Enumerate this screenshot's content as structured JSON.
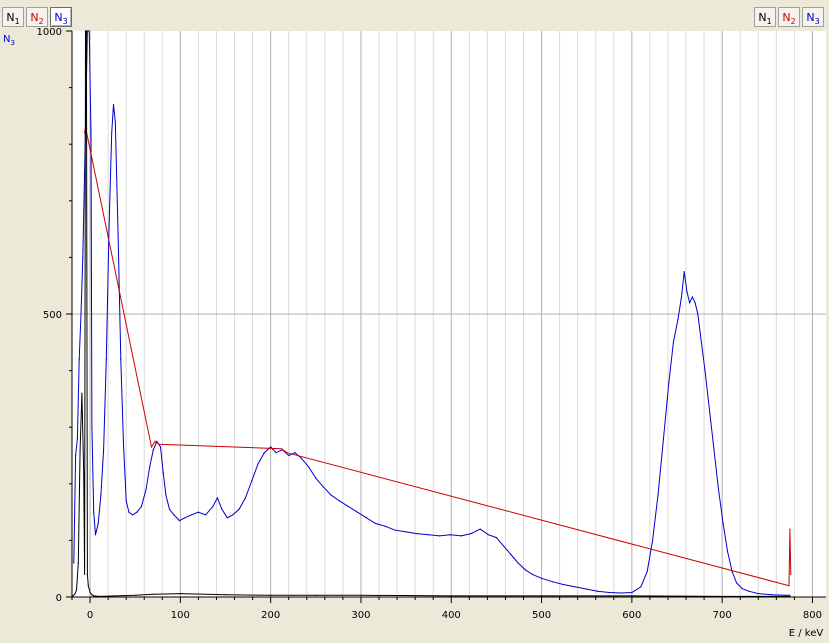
{
  "toolbar": {
    "left_tabs": [
      {
        "base": "N",
        "sub": "1",
        "color": "#000000"
      },
      {
        "base": "N",
        "sub": "2",
        "color": "#cc0000"
      },
      {
        "base": "N",
        "sub": "3",
        "color": "#0000cc"
      }
    ],
    "right_tabs": [
      {
        "base": "N",
        "sub": "1",
        "color": "#000000"
      },
      {
        "base": "N",
        "sub": "2",
        "color": "#cc0000"
      },
      {
        "base": "N",
        "sub": "3",
        "color": "#0000cc"
      }
    ],
    "active_left_index": 2
  },
  "corner_label": {
    "base": "N",
    "sub": "3",
    "color": "#0000cc"
  },
  "colors": {
    "plot_background": "#ffffff",
    "grid_major": "#b0b0b0",
    "grid_minor": "#dadada",
    "series_N1": "#000000",
    "series_N2": "#cc0000",
    "series_N3": "#0000cc"
  },
  "chart_data": {
    "type": "line",
    "xlabel": "E / keV",
    "ylabel": "",
    "xlim": [
      -20,
      815
    ],
    "ylim": [
      0,
      1000
    ],
    "x_ticks": [
      0,
      100,
      200,
      300,
      400,
      500,
      600,
      700,
      800
    ],
    "y_ticks": [
      0,
      500,
      1000
    ],
    "grid": true,
    "legend": "none",
    "series": [
      {
        "name": "N3",
        "color": "#0000cc",
        "points": [
          [
            -18,
            60
          ],
          [
            -16,
            250
          ],
          [
            -14,
            280
          ],
          [
            -12,
            420
          ],
          [
            -10,
            500
          ],
          [
            -8,
            600
          ],
          [
            -5,
            830
          ],
          [
            -3,
            1000
          ],
          [
            -1,
            1000
          ],
          [
            1,
            820
          ],
          [
            2,
            300
          ],
          [
            4,
            150
          ],
          [
            6,
            110
          ],
          [
            9,
            130
          ],
          [
            12,
            180
          ],
          [
            15,
            260
          ],
          [
            18,
            420
          ],
          [
            21,
            650
          ],
          [
            24,
            820
          ],
          [
            26,
            870
          ],
          [
            28,
            840
          ],
          [
            31,
            640
          ],
          [
            34,
            420
          ],
          [
            37,
            270
          ],
          [
            40,
            170
          ],
          [
            43,
            150
          ],
          [
            47,
            145
          ],
          [
            52,
            150
          ],
          [
            57,
            160
          ],
          [
            62,
            190
          ],
          [
            66,
            230
          ],
          [
            70,
            260
          ],
          [
            74,
            275
          ],
          [
            78,
            265
          ],
          [
            81,
            220
          ],
          [
            84,
            180
          ],
          [
            88,
            155
          ],
          [
            93,
            145
          ],
          [
            99,
            135
          ],
          [
            105,
            140
          ],
          [
            112,
            145
          ],
          [
            120,
            150
          ],
          [
            128,
            145
          ],
          [
            136,
            160
          ],
          [
            141,
            175
          ],
          [
            146,
            155
          ],
          [
            152,
            140
          ],
          [
            158,
            145
          ],
          [
            165,
            155
          ],
          [
            172,
            175
          ],
          [
            179,
            205
          ],
          [
            186,
            235
          ],
          [
            193,
            255
          ],
          [
            200,
            265
          ],
          [
            206,
            255
          ],
          [
            213,
            260
          ],
          [
            220,
            250
          ],
          [
            227,
            255
          ],
          [
            234,
            245
          ],
          [
            242,
            230
          ],
          [
            250,
            210
          ],
          [
            258,
            195
          ],
          [
            267,
            180
          ],
          [
            276,
            170
          ],
          [
            286,
            160
          ],
          [
            296,
            150
          ],
          [
            306,
            140
          ],
          [
            316,
            130
          ],
          [
            327,
            125
          ],
          [
            338,
            118
          ],
          [
            350,
            115
          ],
          [
            362,
            112
          ],
          [
            375,
            110
          ],
          [
            387,
            108
          ],
          [
            399,
            110
          ],
          [
            411,
            108
          ],
          [
            422,
            112
          ],
          [
            432,
            120
          ],
          [
            441,
            110
          ],
          [
            450,
            105
          ],
          [
            458,
            90
          ],
          [
            466,
            75
          ],
          [
            474,
            60
          ],
          [
            482,
            48
          ],
          [
            490,
            40
          ],
          [
            500,
            33
          ],
          [
            512,
            27
          ],
          [
            524,
            22
          ],
          [
            537,
            18
          ],
          [
            550,
            14
          ],
          [
            562,
            10
          ],
          [
            575,
            8
          ],
          [
            588,
            7
          ],
          [
            600,
            8
          ],
          [
            610,
            18
          ],
          [
            617,
            45
          ],
          [
            623,
            100
          ],
          [
            629,
            180
          ],
          [
            635,
            280
          ],
          [
            641,
            380
          ],
          [
            646,
            450
          ],
          [
            651,
            490
          ],
          [
            655,
            530
          ],
          [
            658,
            575
          ],
          [
            661,
            540
          ],
          [
            664,
            520
          ],
          [
            667,
            530
          ],
          [
            670,
            520
          ],
          [
            673,
            500
          ],
          [
            677,
            450
          ],
          [
            681,
            400
          ],
          [
            686,
            330
          ],
          [
            691,
            260
          ],
          [
            696,
            190
          ],
          [
            701,
            130
          ],
          [
            706,
            80
          ],
          [
            711,
            45
          ],
          [
            716,
            25
          ],
          [
            722,
            15
          ],
          [
            730,
            10
          ],
          [
            740,
            6
          ],
          [
            755,
            4
          ],
          [
            770,
            3
          ],
          [
            775,
            3
          ]
        ]
      },
      {
        "name": "N2",
        "color": "#cc0000",
        "points": [
          [
            -6,
            820
          ],
          [
            -5,
            830
          ],
          [
            68,
            265
          ],
          [
            72,
            275
          ],
          [
            76,
            270
          ],
          [
            212,
            262
          ],
          [
            218,
            255
          ],
          [
            774,
            20
          ],
          [
            775,
            120
          ],
          [
            776,
            40
          ]
        ]
      },
      {
        "name": "N1",
        "color": "#000000",
        "points": [
          [
            -19,
            2
          ],
          [
            -17,
            5
          ],
          [
            -15,
            12
          ],
          [
            -13,
            60
          ],
          [
            -11,
            260
          ],
          [
            -9,
            360
          ],
          [
            -7,
            220
          ],
          [
            -6,
            40
          ],
          [
            -5,
            1000
          ],
          [
            -4,
            1000
          ],
          [
            -3,
            40
          ],
          [
            -2,
            20
          ],
          [
            0,
            8
          ],
          [
            2,
            4
          ],
          [
            4,
            2
          ],
          [
            10,
            1
          ],
          [
            50,
            3
          ],
          [
            70,
            5
          ],
          [
            100,
            6
          ],
          [
            150,
            4
          ],
          [
            200,
            3
          ],
          [
            250,
            3
          ],
          [
            300,
            3
          ],
          [
            400,
            2
          ],
          [
            500,
            2
          ],
          [
            600,
            2
          ],
          [
            700,
            1
          ],
          [
            775,
            1
          ]
        ]
      }
    ]
  }
}
